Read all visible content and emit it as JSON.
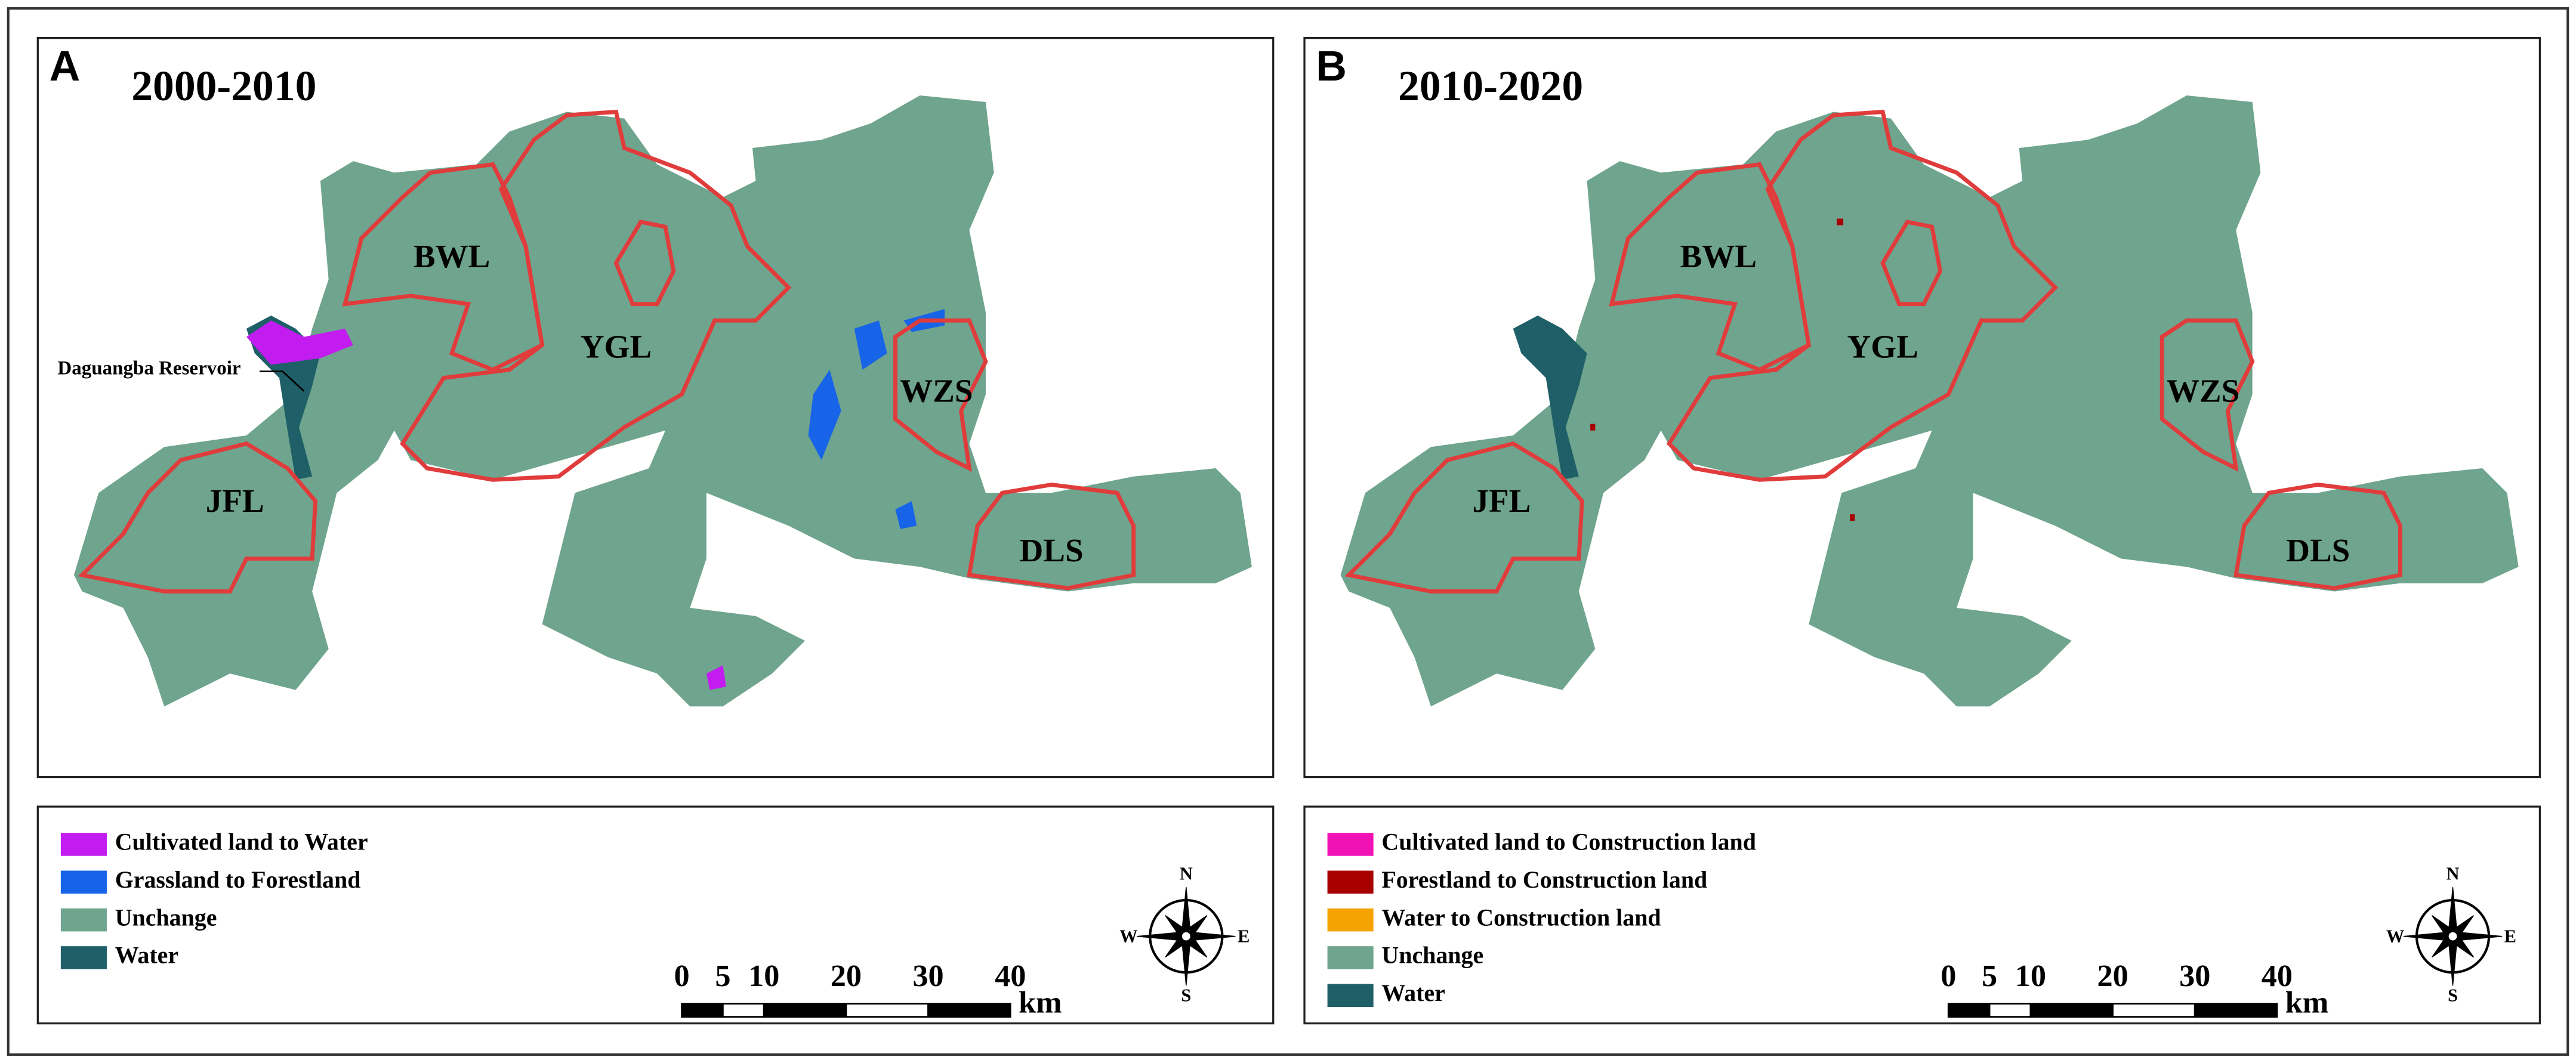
{
  "panels": [
    {
      "label": "A",
      "title": "2000-2010",
      "regions": [
        "BWL",
        "YGL",
        "WZS",
        "JFL",
        "DLS"
      ],
      "annotation": "Daguangba Reservoir",
      "legend": [
        {
          "name": "Cultivated land to Water",
          "color": "#c21cf0"
        },
        {
          "name": "Grassland to Forestland",
          "color": "#1764e8"
        },
        {
          "name": "Unchange",
          "color": "#6fa48e"
        },
        {
          "name": "Water",
          "color": "#1f5f68"
        }
      ],
      "scale": {
        "ticks": [
          0,
          5,
          10,
          20,
          30,
          40
        ],
        "unit": "km"
      },
      "compass": {
        "n": "N",
        "s": "S",
        "e": "E",
        "w": "W"
      }
    },
    {
      "label": "B",
      "title": "2010-2020",
      "regions": [
        "BWL",
        "YGL",
        "WZS",
        "JFL",
        "DLS"
      ],
      "legend": [
        {
          "name": "Cultivated land to Construction land",
          "color": "#f012b4"
        },
        {
          "name": "Forestland to Construction land",
          "color": "#a80000"
        },
        {
          "name": "Water to Construction land",
          "color": "#f5a300"
        },
        {
          "name": "Unchange",
          "color": "#6fa48e"
        },
        {
          "name": "Water",
          "color": "#1f5f68"
        }
      ],
      "scale": {
        "ticks": [
          0,
          5,
          10,
          20,
          30,
          40
        ],
        "unit": "km"
      },
      "compass": {
        "n": "N",
        "s": "S",
        "e": "E",
        "w": "W"
      }
    }
  ]
}
